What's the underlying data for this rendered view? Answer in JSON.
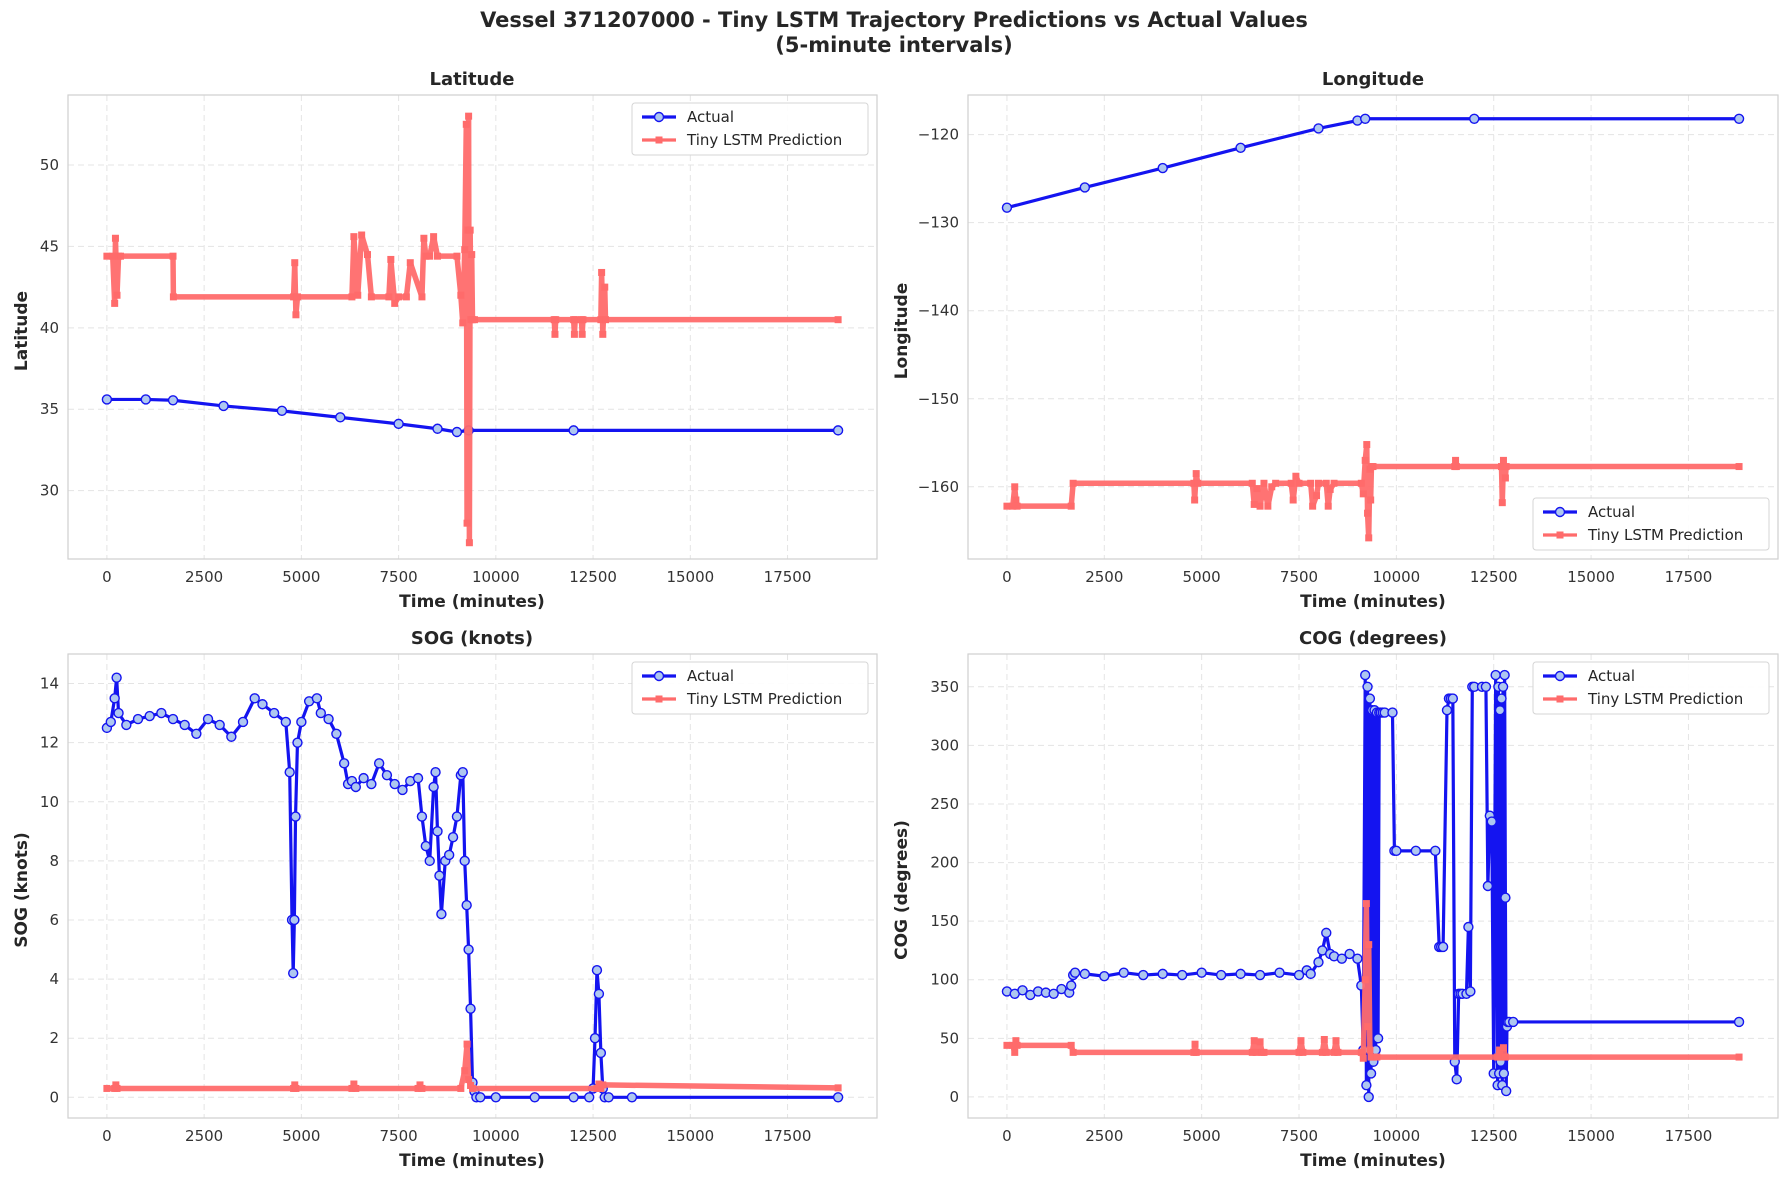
{
  "figure": {
    "title_line1": "Vessel 371207000 - Tiny LSTM Trajectory Predictions vs Actual Values",
    "title_line2": "(5-minute intervals)"
  },
  "colors": {
    "actual": "#1414f0",
    "actual_marker_fill": "#aec7f0",
    "prediction": "#ff6b6b"
  },
  "chart_data": [
    {
      "type": "line",
      "title": "Latitude",
      "xlabel": "Time (minutes)",
      "ylabel": "Latitude",
      "xlim": [
        -1000,
        19800
      ],
      "ylim": [
        25.8,
        54.3
      ],
      "xticks": [
        0,
        2500,
        5000,
        7500,
        10000,
        12500,
        15000,
        17500
      ],
      "yticks": [
        30,
        35,
        40,
        45,
        50
      ],
      "legend": "top-right",
      "grid": true,
      "series": [
        {
          "name": "Actual",
          "style": "actual",
          "x": [
            0,
            1000,
            1700,
            3000,
            4500,
            6000,
            7500,
            8500,
            9000,
            9300,
            12000,
            18800
          ],
          "y": [
            35.6,
            35.6,
            35.55,
            35.2,
            34.9,
            34.5,
            34.1,
            33.8,
            33.6,
            33.7,
            33.7,
            33.7
          ]
        },
        {
          "name": "Tiny LSTM Prediction",
          "style": "prediction",
          "x": [
            0,
            150,
            200,
            220,
            260,
            300,
            350,
            1700,
            1710,
            4800,
            4830,
            4860,
            4900,
            6300,
            6350,
            6450,
            6550,
            6700,
            6800,
            7250,
            7300,
            7400,
            7500,
            7700,
            7800,
            8100,
            8150,
            8200,
            8300,
            8400,
            8500,
            9000,
            9100,
            9150,
            9200,
            9240,
            9260,
            9280,
            9300,
            9320,
            9340,
            9360,
            9380,
            9400,
            9450,
            11500,
            11520,
            11540,
            12000,
            12020,
            12040,
            12200,
            12220,
            12240,
            12700,
            12720,
            12750,
            12800,
            12820,
            18800
          ],
          "y": [
            44.4,
            44.4,
            41.5,
            45.5,
            42.0,
            44.4,
            44.4,
            44.4,
            41.9,
            41.9,
            44.0,
            40.8,
            41.9,
            41.9,
            45.6,
            42.0,
            45.7,
            44.5,
            41.9,
            41.9,
            44.2,
            41.5,
            41.9,
            41.9,
            44.0,
            41.9,
            45.5,
            44.4,
            44.4,
            45.6,
            44.4,
            44.4,
            42.0,
            40.3,
            44.8,
            52.5,
            28.0,
            46.0,
            53.0,
            26.8,
            46.0,
            40.5,
            44.5,
            40.5,
            40.5,
            40.5,
            39.6,
            40.5,
            40.5,
            39.6,
            40.5,
            40.5,
            39.6,
            40.5,
            40.5,
            43.4,
            39.6,
            42.5,
            40.5,
            40.5
          ]
        }
      ]
    },
    {
      "type": "line",
      "title": "Longitude",
      "xlabel": "Time (minutes)",
      "ylabel": "Longitude",
      "xlim": [
        -1000,
        19800
      ],
      "ylim": [
        -168.2,
        -115.5
      ],
      "xticks": [
        0,
        2500,
        5000,
        7500,
        10000,
        12500,
        15000,
        17500
      ],
      "yticks": [
        -160,
        -150,
        -140,
        -130,
        -120
      ],
      "legend": "bottom-right",
      "grid": true,
      "series": [
        {
          "name": "Actual",
          "style": "actual",
          "x": [
            0,
            2000,
            4000,
            6000,
            8000,
            9000,
            9200,
            12000,
            18800
          ],
          "y": [
            -128.3,
            -126.0,
            -123.8,
            -121.5,
            -119.3,
            -118.4,
            -118.2,
            -118.2,
            -118.2
          ]
        },
        {
          "name": "Tiny LSTM Prediction",
          "style": "prediction",
          "x": [
            0,
            150,
            200,
            230,
            260,
            1650,
            1700,
            4800,
            4820,
            4860,
            4900,
            6300,
            6350,
            6420,
            6500,
            6600,
            6700,
            6800,
            6900,
            7300,
            7350,
            7420,
            7500,
            7800,
            7850,
            7950,
            8000,
            8200,
            8250,
            8300,
            8400,
            9100,
            9150,
            9200,
            9240,
            9260,
            9290,
            9320,
            9340,
            9360,
            9400,
            11500,
            11520,
            11540,
            12700,
            12720,
            12750,
            12800,
            12820,
            18800
          ],
          "y": [
            -162.2,
            -162.2,
            -160.0,
            -161.5,
            -162.2,
            -162.2,
            -159.6,
            -159.6,
            -161.5,
            -158.5,
            -159.6,
            -159.6,
            -162.0,
            -160.2,
            -162.2,
            -159.6,
            -162.2,
            -160.0,
            -159.6,
            -159.6,
            -161.5,
            -158.8,
            -159.6,
            -159.6,
            -162.2,
            -161.0,
            -159.6,
            -159.6,
            -162.2,
            -160.3,
            -159.6,
            -159.6,
            -160.8,
            -157.0,
            -155.2,
            -163.0,
            -165.8,
            -158.0,
            -161.5,
            -157.7,
            -157.7,
            -157.7,
            -157.0,
            -157.7,
            -157.7,
            -161.8,
            -157.0,
            -159.0,
            -157.7,
            -157.7
          ]
        }
      ]
    },
    {
      "type": "line",
      "title": "SOG (knots)",
      "xlabel": "Time (minutes)",
      "ylabel": "SOG (knots)",
      "xlim": [
        -1000,
        19800
      ],
      "ylim": [
        -0.7,
        15.0
      ],
      "xticks": [
        0,
        2500,
        5000,
        7500,
        10000,
        12500,
        15000,
        17500
      ],
      "yticks": [
        0,
        2,
        4,
        6,
        8,
        10,
        12,
        14
      ],
      "legend": "top-right",
      "grid": true,
      "series": [
        {
          "name": "Actual",
          "style": "actual",
          "x": [
            0,
            100,
            200,
            250,
            300,
            500,
            800,
            1100,
            1400,
            1700,
            2000,
            2300,
            2600,
            2900,
            3200,
            3500,
            3800,
            4000,
            4300,
            4600,
            4700,
            4760,
            4790,
            4820,
            4850,
            4900,
            5000,
            5200,
            5400,
            5500,
            5700,
            5900,
            6100,
            6200,
            6300,
            6400,
            6600,
            6800,
            7000,
            7200,
            7400,
            7600,
            7800,
            8000,
            8100,
            8200,
            8300,
            8400,
            8450,
            8500,
            8550,
            8600,
            8700,
            8800,
            8900,
            9000,
            9100,
            9150,
            9200,
            9250,
            9300,
            9350,
            9400,
            9450,
            9500,
            9600,
            10000,
            11000,
            12000,
            12400,
            12500,
            12550,
            12600,
            12650,
            12700,
            12750,
            12800,
            12900,
            13500,
            18800
          ],
          "y": [
            12.5,
            12.7,
            13.5,
            14.2,
            13.0,
            12.6,
            12.8,
            12.9,
            13.0,
            12.8,
            12.6,
            12.3,
            12.8,
            12.6,
            12.2,
            12.7,
            13.5,
            13.3,
            13.0,
            12.7,
            11.0,
            6.0,
            4.2,
            6.0,
            9.5,
            12.0,
            12.7,
            13.4,
            13.5,
            13.0,
            12.8,
            12.3,
            11.3,
            10.6,
            10.7,
            10.5,
            10.8,
            10.6,
            11.3,
            10.9,
            10.6,
            10.4,
            10.7,
            10.8,
            9.5,
            8.5,
            8.0,
            10.5,
            11.0,
            9.0,
            7.5,
            6.2,
            8.0,
            8.2,
            8.8,
            9.5,
            10.9,
            11.0,
            8.0,
            6.5,
            5.0,
            3.0,
            0.5,
            0.2,
            0.0,
            0.0,
            0.0,
            0.0,
            0.0,
            0.0,
            0.3,
            2.0,
            4.3,
            3.5,
            1.5,
            0.3,
            0.0,
            0.0,
            0.0,
            0.0
          ]
        },
        {
          "name": "Tiny LSTM Prediction",
          "style": "prediction",
          "x": [
            0,
            200,
            230,
            260,
            4800,
            4830,
            4860,
            6300,
            6350,
            6400,
            8000,
            8050,
            8100,
            9100,
            9200,
            9260,
            9300,
            9350,
            9400,
            12600,
            12650,
            12700,
            12750,
            18800
          ],
          "y": [
            0.3,
            0.3,
            0.42,
            0.3,
            0.3,
            0.42,
            0.3,
            0.3,
            0.45,
            0.3,
            0.3,
            0.42,
            0.3,
            0.3,
            0.9,
            1.8,
            0.6,
            0.4,
            0.3,
            0.3,
            0.45,
            0.3,
            0.42,
            0.32
          ]
        }
      ]
    },
    {
      "type": "line",
      "title": "COG (degrees)",
      "xlabel": "Time (minutes)",
      "ylabel": "COG (degrees)",
      "xlim": [
        -1000,
        19800
      ],
      "ylim": [
        -18,
        378
      ],
      "xticks": [
        0,
        2500,
        5000,
        7500,
        10000,
        12500,
        15000,
        17500
      ],
      "yticks": [
        0,
        50,
        100,
        150,
        200,
        250,
        300,
        350
      ],
      "legend": "top-right",
      "grid": true,
      "series": [
        {
          "name": "Actual",
          "style": "actual",
          "x": [
            0,
            200,
            400,
            600,
            800,
            1000,
            1200,
            1400,
            1600,
            1650,
            1700,
            1750,
            2000,
            2500,
            3000,
            3500,
            4000,
            4500,
            5000,
            5500,
            6000,
            6500,
            7000,
            7500,
            7700,
            7800,
            8000,
            8100,
            8200,
            8300,
            8400,
            8600,
            8800,
            9000,
            9100,
            9150,
            9200,
            9230,
            9260,
            9290,
            9320,
            9350,
            9380,
            9410,
            9440,
            9470,
            9500,
            9530,
            9560,
            9600,
            9650,
            9700,
            9900,
            9950,
            10000,
            10500,
            11000,
            11100,
            11150,
            11200,
            11300,
            11350,
            11400,
            11450,
            11500,
            11550,
            11600,
            11650,
            11700,
            11800,
            11850,
            11900,
            11950,
            12000,
            12200,
            12300,
            12350,
            12400,
            12450,
            12500,
            12550,
            12600,
            12620,
            12640,
            12660,
            12680,
            12700,
            12720,
            12740,
            12760,
            12780,
            12800,
            12820,
            12840,
            12860,
            12900,
            13000,
            18800
          ],
          "y": [
            90,
            88,
            91,
            87,
            90,
            89,
            88,
            92,
            89,
            95,
            104,
            106,
            105,
            103,
            106,
            104,
            105,
            104,
            106,
            104,
            105,
            104,
            106,
            104,
            108,
            105,
            115,
            125,
            140,
            122,
            120,
            118,
            122,
            118,
            95,
            40,
            360,
            10,
            350,
            0,
            340,
            20,
            330,
            30,
            330,
            40,
            328,
            50,
            328,
            328,
            328,
            328,
            328,
            210,
            210,
            210,
            210,
            128,
            128,
            128,
            330,
            340,
            340,
            340,
            30,
            15,
            88,
            88,
            88,
            88,
            145,
            90,
            350,
            350,
            350,
            350,
            180,
            240,
            235,
            20,
            360,
            10,
            350,
            20,
            330,
            30,
            340,
            10,
            350,
            20,
            360,
            170,
            5,
            60,
            64,
            64,
            64,
            64
          ]
        },
        {
          "name": "Tiny LSTM Prediction",
          "style": "prediction",
          "x": [
            0,
            150,
            200,
            230,
            260,
            1650,
            1700,
            4800,
            4830,
            4860,
            6300,
            6350,
            6400,
            6500,
            6550,
            6600,
            7500,
            7550,
            7600,
            8100,
            8150,
            8200,
            8400,
            8450,
            8500,
            9100,
            9150,
            9200,
            9230,
            9260,
            9290,
            9320,
            9350,
            9400,
            9500,
            12600,
            12650,
            12700,
            12750,
            12800,
            18800
          ],
          "y": [
            44,
            44,
            38,
            48,
            44,
            44,
            38,
            38,
            45,
            38,
            38,
            48,
            38,
            47,
            38,
            38,
            38,
            48,
            38,
            38,
            49,
            38,
            38,
            48,
            38,
            38,
            33,
            100,
            165,
            60,
            130,
            40,
            34,
            34,
            34,
            34,
            40,
            34,
            42,
            34,
            34
          ]
        }
      ]
    }
  ]
}
